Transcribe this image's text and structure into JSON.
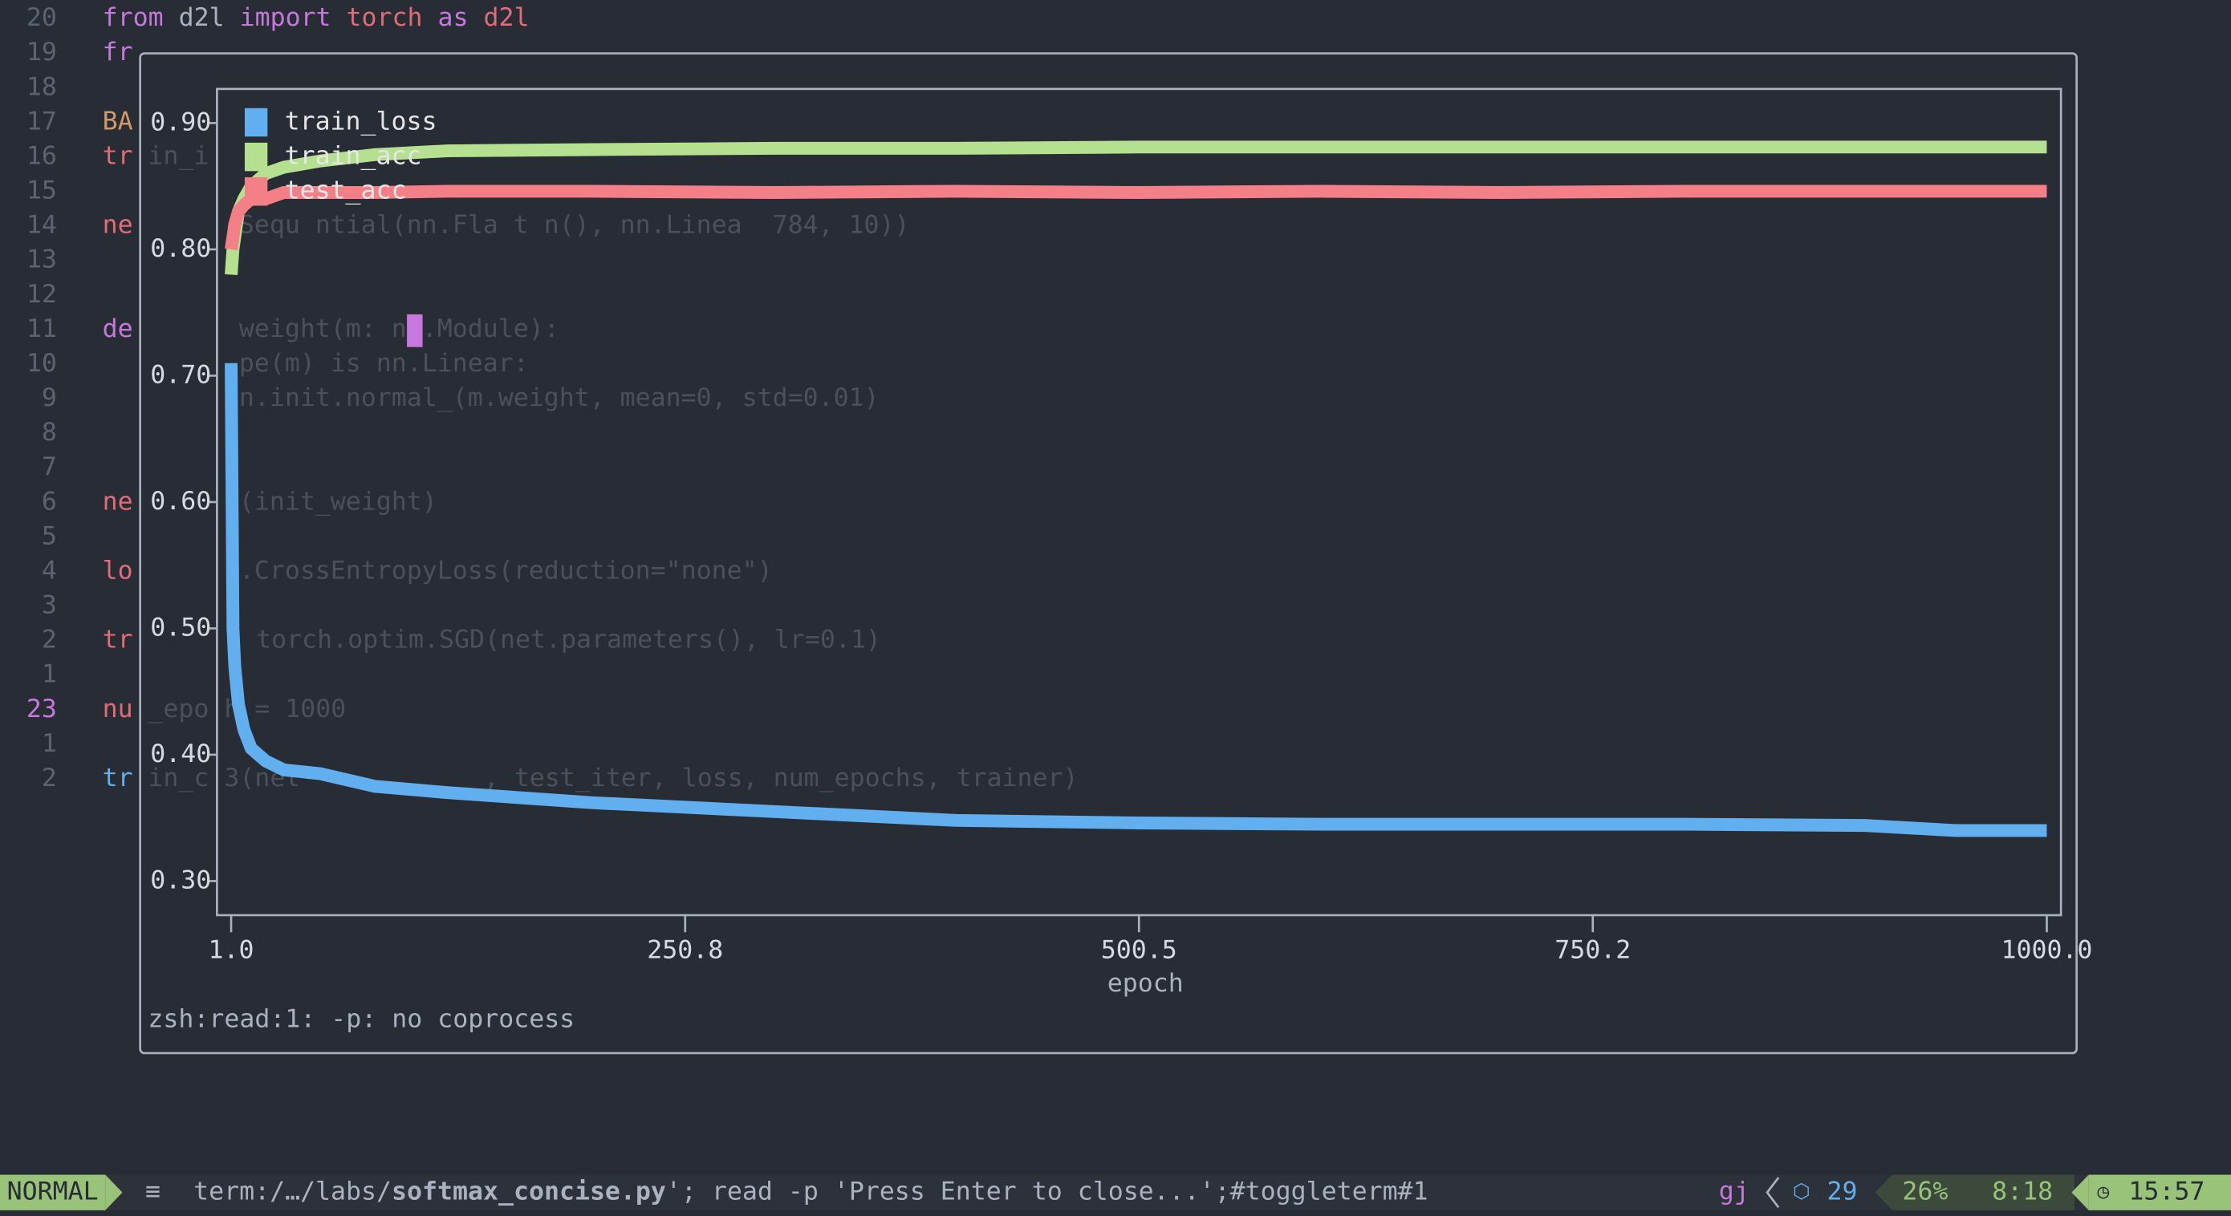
{
  "editor": {
    "lines": [
      {
        "number": "20",
        "tokens": [
          {
            "text": "from",
            "color": "#c678dd"
          },
          {
            "text": " d2l ",
            "color": "#abb2bf"
          },
          {
            "text": "import",
            "color": "#c678dd"
          },
          {
            "text": " torch ",
            "color": "#e06c75"
          },
          {
            "text": "as",
            "color": "#c678dd"
          },
          {
            "text": " d2l",
            "color": "#e06c75"
          }
        ]
      },
      {
        "number": "19",
        "tokens": [
          {
            "text": "fr",
            "color": "#c678dd"
          }
        ]
      },
      {
        "number": "18"
      },
      {
        "number": "17",
        "tokens": [
          {
            "text": "BA",
            "color": "#d19a66"
          }
        ]
      },
      {
        "number": "16",
        "tokens": [
          {
            "text": "tr",
            "color": "#e06c75"
          }
        ],
        "behind": [
          "in_i"
        ]
      },
      {
        "number": "15"
      },
      {
        "number": "14",
        "tokens": [
          {
            "text": "ne",
            "color": "#e06c75"
          }
        ],
        "behind": [
          "Sequ ntial(nn.Fla t n(), nn.Linea  784, 10))"
        ]
      },
      {
        "number": "13"
      },
      {
        "number": "12"
      },
      {
        "number": "11",
        "tokens": [
          {
            "text": "de",
            "color": "#c678dd"
          }
        ],
        "behind": [
          "weight(m: nn.Module):"
        ]
      },
      {
        "number": "10",
        "behind": [
          "pe(m) is nn.Linear:"
        ]
      },
      {
        "number": "9",
        "behind": [
          "n.init.normal_(m.weight, mean=0, std=0.01)"
        ]
      },
      {
        "number": "8"
      },
      {
        "number": "7"
      },
      {
        "number": "6",
        "tokens": [
          {
            "text": "ne",
            "color": "#e06c75"
          }
        ],
        "behind": [
          "(init_weight)"
        ]
      },
      {
        "number": "5"
      },
      {
        "number": "4",
        "tokens": [
          {
            "text": "lo",
            "color": "#e06c75"
          }
        ],
        "behind": [
          ".CrossEntropyLoss(reduction=\"none\")"
        ]
      },
      {
        "number": "3"
      },
      {
        "number": "2",
        "tokens": [
          {
            "text": "tr",
            "color": "#e06c75"
          }
        ],
        "behind": [
          "torch.optim.SGD(net.parameters(), lr=0.1)"
        ]
      },
      {
        "number": "1"
      },
      {
        "number": "23",
        "current": true,
        "tokens": [
          {
            "text": "nu",
            "color": "#e06c75"
          }
        ],
        "behind": [
          "_epo h = 1000"
        ]
      },
      {
        "number": "1"
      },
      {
        "number": "2",
        "tokens": [
          {
            "text": "tr",
            "color": "#61afef"
          }
        ],
        "behind": [
          "in_c 3(net",
          ", test_iter, loss, num_epochs, trainer)"
        ]
      }
    ]
  },
  "terminal": {
    "message": "zsh:read:1: -p: no coprocess"
  },
  "chart_data": {
    "type": "line",
    "xlabel": "epoch",
    "legend": "upper left",
    "x": [
      1,
      2,
      3,
      5,
      8,
      12,
      20,
      30,
      50,
      80,
      120,
      200,
      300,
      400,
      500,
      600,
      700,
      800,
      900,
      950,
      1000
    ],
    "series": [
      {
        "name": "train_loss",
        "color": "#61afef",
        "values": [
          0.71,
          0.5,
          0.47,
          0.44,
          0.42,
          0.405,
          0.395,
          0.388,
          0.385,
          0.375,
          0.37,
          0.362,
          0.355,
          0.348,
          0.346,
          0.345,
          0.345,
          0.345,
          0.344,
          0.34,
          0.34
        ]
      },
      {
        "name": "train_acc",
        "color": "#b5e08f",
        "values": [
          0.78,
          0.8,
          0.81,
          0.83,
          0.84,
          0.85,
          0.86,
          0.865,
          0.87,
          0.875,
          0.878,
          0.879,
          0.88,
          0.88,
          0.881,
          0.881,
          0.881,
          0.881,
          0.881,
          0.881,
          0.881
        ]
      },
      {
        "name": "test_acc",
        "color": "#f47f86",
        "values": [
          0.8,
          0.81,
          0.82,
          0.83,
          0.835,
          0.84,
          0.84,
          0.845,
          0.845,
          0.845,
          0.846,
          0.846,
          0.845,
          0.846,
          0.845,
          0.846,
          0.845,
          0.846,
          0.846,
          0.846,
          0.846
        ]
      }
    ],
    "xlim": [
      -6.8,
      1007.8
    ],
    "ylim": [
      0.273,
      0.927
    ],
    "xticks": [
      {
        "value": 1,
        "label": "1.0"
      },
      {
        "value": 250.8,
        "label": "250.8"
      },
      {
        "value": 500.5,
        "label": "500.5"
      },
      {
        "value": 750.2,
        "label": "750.2"
      },
      {
        "value": 1000,
        "label": "1000.0"
      }
    ],
    "yticks": [
      {
        "value": 0.3,
        "label": "0.30"
      },
      {
        "value": 0.4,
        "label": "0.40"
      },
      {
        "value": 0.5,
        "label": "0.50"
      },
      {
        "value": 0.6,
        "label": "0.60"
      },
      {
        "value": 0.7,
        "label": "0.70"
      },
      {
        "value": 0.8,
        "label": "0.80"
      },
      {
        "value": 0.9,
        "label": "0.90"
      }
    ]
  },
  "statusline": {
    "mode": "NORMAL",
    "file_prefix": "term:/…/labs/",
    "file_name": "softmax_concise.py",
    "file_suffix": "'; read -p 'Press Enter to close...';#toggleterm#1",
    "keys": "gj",
    "diagnostics": "29",
    "progress": "26%",
    "position": "8:18",
    "clock": "15:57"
  }
}
